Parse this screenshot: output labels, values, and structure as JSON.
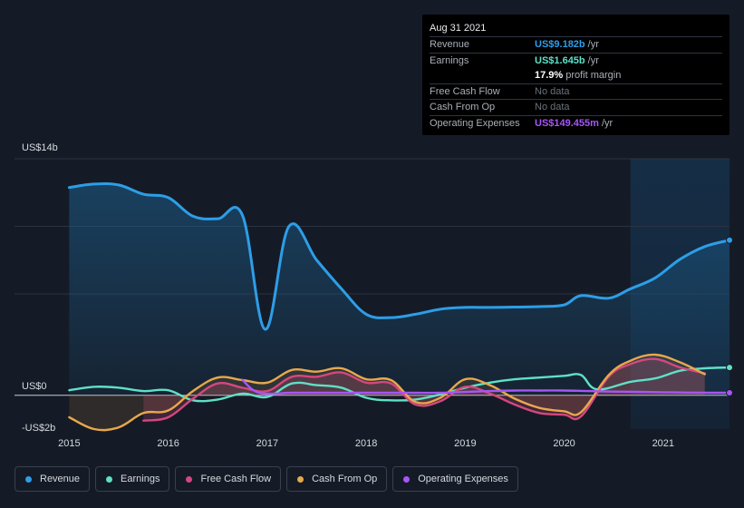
{
  "tooltip": {
    "date": "Aug 31 2021",
    "rows": [
      {
        "label": "Revenue",
        "value": "US$9.182b",
        "unit": "/yr",
        "color": "#2d9ee8"
      },
      {
        "label": "Earnings",
        "value": "US$1.645b",
        "unit": "/yr",
        "color": "#5fe0c7"
      },
      {
        "label": "",
        "value": "17.9%",
        "unit": "profit margin",
        "color": "#ffffff"
      },
      {
        "label": "Free Cash Flow",
        "value": "No data",
        "unit": "",
        "color": "#6b727c"
      },
      {
        "label": "Cash From Op",
        "value": "No data",
        "unit": "",
        "color": "#6b727c"
      },
      {
        "label": "Operating Expenses",
        "value": "US$149.455m",
        "unit": "/yr",
        "color": "#a855f7"
      }
    ]
  },
  "legend": [
    {
      "label": "Revenue",
      "color": "#2d9ee8"
    },
    {
      "label": "Earnings",
      "color": "#5fe0c7"
    },
    {
      "label": "Free Cash Flow",
      "color": "#d5477f"
    },
    {
      "label": "Cash From Op",
      "color": "#e8a84c"
    },
    {
      "label": "Operating Expenses",
      "color": "#a855f7"
    }
  ],
  "chart_data": {
    "type": "line",
    "ylim": [
      -2,
      14
    ],
    "xlim": [
      2014.74,
      2021.67
    ],
    "y_tick_labels": [
      {
        "value": 14,
        "label": "US$14b"
      },
      {
        "value": 0,
        "label": "US$0"
      },
      {
        "value": -2,
        "label": "-US$2b"
      }
    ],
    "x_tick_labels": [
      {
        "value": 2015,
        "label": "2015"
      },
      {
        "value": 2016,
        "label": "2016"
      },
      {
        "value": 2017,
        "label": "2017"
      },
      {
        "value": 2018,
        "label": "2018"
      },
      {
        "value": 2019,
        "label": "2019"
      },
      {
        "value": 2020,
        "label": "2020"
      },
      {
        "value": 2021,
        "label": "2021"
      }
    ],
    "highlight_start": 2020.67,
    "series": [
      {
        "name": "Revenue",
        "color": "#2d9ee8",
        "fill": true,
        "points": [
          [
            2015.0,
            12.3
          ],
          [
            2015.25,
            12.5
          ],
          [
            2015.5,
            12.45
          ],
          [
            2015.75,
            11.9
          ],
          [
            2016.0,
            11.7
          ],
          [
            2016.25,
            10.6
          ],
          [
            2016.5,
            10.45
          ],
          [
            2016.75,
            10.65
          ],
          [
            2016.98,
            3.9
          ],
          [
            2017.22,
            10.0
          ],
          [
            2017.5,
            8.0
          ],
          [
            2017.75,
            6.3
          ],
          [
            2018.0,
            4.8
          ],
          [
            2018.25,
            4.6
          ],
          [
            2018.5,
            4.8
          ],
          [
            2018.75,
            5.1
          ],
          [
            2019.0,
            5.2
          ],
          [
            2019.25,
            5.2
          ],
          [
            2019.5,
            5.22
          ],
          [
            2019.75,
            5.25
          ],
          [
            2020.0,
            5.35
          ],
          [
            2020.17,
            5.9
          ],
          [
            2020.45,
            5.75
          ],
          [
            2020.67,
            6.3
          ],
          [
            2020.92,
            6.95
          ],
          [
            2021.17,
            8.05
          ],
          [
            2021.42,
            8.8
          ],
          [
            2021.67,
            9.18
          ]
        ]
      },
      {
        "name": "Earnings",
        "color": "#5fe0c7",
        "fill": false,
        "points": [
          [
            2015.0,
            0.3
          ],
          [
            2015.25,
            0.5
          ],
          [
            2015.5,
            0.45
          ],
          [
            2015.75,
            0.25
          ],
          [
            2016.0,
            0.3
          ],
          [
            2016.25,
            -0.3
          ],
          [
            2016.5,
            -0.25
          ],
          [
            2016.75,
            0.1
          ],
          [
            2017.0,
            -0.1
          ],
          [
            2017.25,
            0.7
          ],
          [
            2017.5,
            0.6
          ],
          [
            2017.75,
            0.45
          ],
          [
            2018.0,
            -0.15
          ],
          [
            2018.25,
            -0.3
          ],
          [
            2018.5,
            -0.25
          ],
          [
            2018.75,
            0.05
          ],
          [
            2019.0,
            0.45
          ],
          [
            2019.25,
            0.75
          ],
          [
            2019.5,
            0.95
          ],
          [
            2019.75,
            1.05
          ],
          [
            2020.0,
            1.15
          ],
          [
            2020.17,
            1.2
          ],
          [
            2020.33,
            0.35
          ],
          [
            2020.67,
            0.8
          ],
          [
            2020.92,
            1.0
          ],
          [
            2021.17,
            1.45
          ],
          [
            2021.42,
            1.6
          ],
          [
            2021.67,
            1.645
          ]
        ]
      },
      {
        "name": "Free Cash Flow",
        "color": "#d5477f",
        "fill": true,
        "points": [
          [
            2015.75,
            -1.5
          ],
          [
            2016.0,
            -1.3
          ],
          [
            2016.25,
            -0.2
          ],
          [
            2016.5,
            0.7
          ],
          [
            2016.75,
            0.45
          ],
          [
            2017.0,
            0.25
          ],
          [
            2017.25,
            1.1
          ],
          [
            2017.5,
            1.1
          ],
          [
            2017.75,
            1.35
          ],
          [
            2018.0,
            0.75
          ],
          [
            2018.25,
            0.7
          ],
          [
            2018.5,
            -0.55
          ],
          [
            2018.75,
            -0.35
          ],
          [
            2019.0,
            0.5
          ],
          [
            2019.25,
            0.1
          ],
          [
            2019.5,
            -0.55
          ],
          [
            2019.75,
            -1.05
          ],
          [
            2020.0,
            -1.15
          ],
          [
            2020.17,
            -1.25
          ],
          [
            2020.45,
            1.1
          ],
          [
            2020.67,
            1.85
          ],
          [
            2020.92,
            2.15
          ],
          [
            2021.17,
            1.65
          ],
          [
            2021.42,
            1.3
          ]
        ]
      },
      {
        "name": "Cash From Op",
        "color": "#e8a84c",
        "fill": true,
        "points": [
          [
            2015.0,
            -1.3
          ],
          [
            2015.25,
            -2.0
          ],
          [
            2015.5,
            -1.9
          ],
          [
            2015.75,
            -1.05
          ],
          [
            2016.0,
            -0.9
          ],
          [
            2016.25,
            0.25
          ],
          [
            2016.5,
            1.05
          ],
          [
            2016.75,
            0.9
          ],
          [
            2017.0,
            0.75
          ],
          [
            2017.25,
            1.5
          ],
          [
            2017.5,
            1.4
          ],
          [
            2017.75,
            1.6
          ],
          [
            2018.0,
            0.95
          ],
          [
            2018.25,
            0.9
          ],
          [
            2018.5,
            -0.4
          ],
          [
            2018.75,
            -0.15
          ],
          [
            2019.0,
            0.95
          ],
          [
            2019.25,
            0.6
          ],
          [
            2019.5,
            -0.2
          ],
          [
            2019.75,
            -0.75
          ],
          [
            2020.0,
            -0.95
          ],
          [
            2020.17,
            -1.0
          ],
          [
            2020.45,
            1.2
          ],
          [
            2020.67,
            2.05
          ],
          [
            2020.92,
            2.4
          ],
          [
            2021.17,
            1.95
          ],
          [
            2021.42,
            1.25
          ]
        ]
      },
      {
        "name": "Operating Expenses",
        "color": "#a855f7",
        "fill": false,
        "points": [
          [
            2016.75,
            0.9
          ],
          [
            2016.92,
            0.15
          ],
          [
            2017.25,
            0.15
          ],
          [
            2017.5,
            0.15
          ],
          [
            2017.75,
            0.15
          ],
          [
            2018.0,
            0.15
          ],
          [
            2018.25,
            0.15
          ],
          [
            2018.5,
            0.15
          ],
          [
            2018.75,
            0.15
          ],
          [
            2019.0,
            0.2
          ],
          [
            2019.25,
            0.25
          ],
          [
            2019.5,
            0.28
          ],
          [
            2019.75,
            0.28
          ],
          [
            2020.0,
            0.28
          ],
          [
            2020.25,
            0.25
          ],
          [
            2020.5,
            0.22
          ],
          [
            2020.75,
            0.2
          ],
          [
            2021.0,
            0.18
          ],
          [
            2021.25,
            0.16
          ],
          [
            2021.5,
            0.15
          ],
          [
            2021.67,
            0.149
          ]
        ]
      }
    ]
  }
}
